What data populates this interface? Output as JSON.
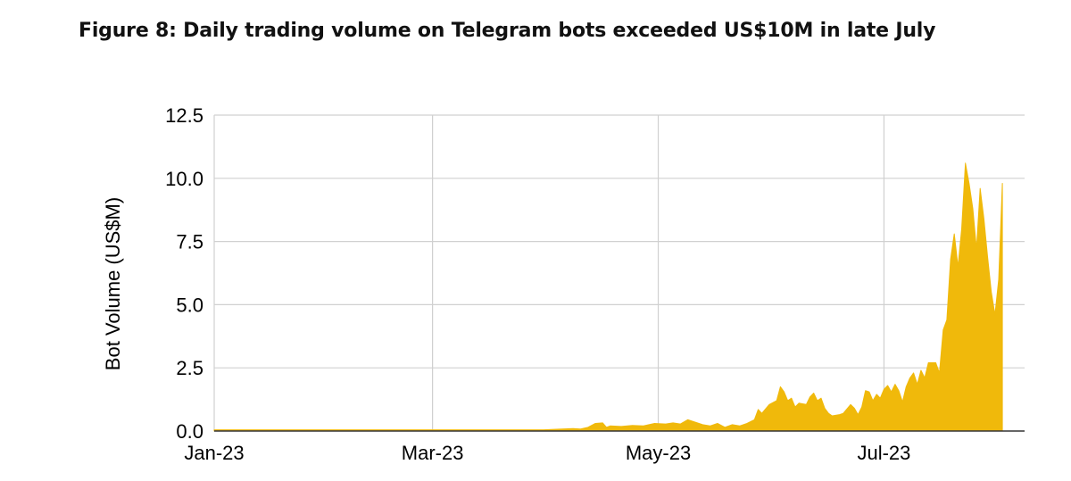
{
  "chart_data": {
    "type": "area",
    "title": "Figure 8: Daily trading volume on Telegram bots exceeded US$10M in late July",
    "xlabel": "",
    "ylabel": "Bot Volume (US$M)",
    "ylim": [
      0,
      12.5
    ],
    "yticks": [
      "0.0",
      "2.5",
      "5.0",
      "7.5",
      "10.0",
      "12.5"
    ],
    "xticks": [
      {
        "label": "Jan-23",
        "date": "2023-01-01"
      },
      {
        "label": "Mar-23",
        "date": "2023-03-01"
      },
      {
        "label": "May-23",
        "date": "2023-05-01"
      },
      {
        "label": "Jul-23",
        "date": "2023-07-01"
      }
    ],
    "x_range": [
      "2023-01-01",
      "2023-08-08"
    ],
    "grid": true,
    "color": "#F0B90B",
    "series": [
      {
        "points": [
          [
            "2023-01-01",
            0.05
          ],
          [
            "2023-03-31",
            0.05
          ],
          [
            "2023-04-05",
            0.08
          ],
          [
            "2023-04-08",
            0.1
          ],
          [
            "2023-04-10",
            0.08
          ],
          [
            "2023-04-12",
            0.15
          ],
          [
            "2023-04-14",
            0.3
          ],
          [
            "2023-04-16",
            0.32
          ],
          [
            "2023-04-17",
            0.15
          ],
          [
            "2023-04-18",
            0.2
          ],
          [
            "2023-04-21",
            0.18
          ],
          [
            "2023-04-24",
            0.22
          ],
          [
            "2023-04-27",
            0.2
          ],
          [
            "2023-04-30",
            0.3
          ],
          [
            "2023-05-03",
            0.28
          ],
          [
            "2023-05-05",
            0.32
          ],
          [
            "2023-05-07",
            0.28
          ],
          [
            "2023-05-09",
            0.45
          ],
          [
            "2023-05-11",
            0.35
          ],
          [
            "2023-05-13",
            0.25
          ],
          [
            "2023-05-15",
            0.2
          ],
          [
            "2023-05-17",
            0.3
          ],
          [
            "2023-05-19",
            0.15
          ],
          [
            "2023-05-21",
            0.25
          ],
          [
            "2023-05-23",
            0.2
          ],
          [
            "2023-05-25",
            0.3
          ],
          [
            "2023-05-27",
            0.45
          ],
          [
            "2023-05-28",
            0.85
          ],
          [
            "2023-05-29",
            0.7
          ],
          [
            "2023-05-31",
            1.05
          ],
          [
            "2023-06-02",
            1.2
          ],
          [
            "2023-06-03",
            1.75
          ],
          [
            "2023-06-04",
            1.55
          ],
          [
            "2023-06-05",
            1.2
          ],
          [
            "2023-06-06",
            1.3
          ],
          [
            "2023-06-07",
            0.95
          ],
          [
            "2023-06-08",
            1.1
          ],
          [
            "2023-06-10",
            1.05
          ],
          [
            "2023-06-11",
            1.35
          ],
          [
            "2023-06-12",
            1.5
          ],
          [
            "2023-06-13",
            1.2
          ],
          [
            "2023-06-14",
            1.3
          ],
          [
            "2023-06-15",
            0.9
          ],
          [
            "2023-06-16",
            0.7
          ],
          [
            "2023-06-17",
            0.6
          ],
          [
            "2023-06-19",
            0.65
          ],
          [
            "2023-06-20",
            0.7
          ],
          [
            "2023-06-22",
            1.05
          ],
          [
            "2023-06-23",
            0.9
          ],
          [
            "2023-06-24",
            0.65
          ],
          [
            "2023-06-25",
            0.95
          ],
          [
            "2023-06-26",
            1.6
          ],
          [
            "2023-06-27",
            1.55
          ],
          [
            "2023-06-28",
            1.2
          ],
          [
            "2023-06-29",
            1.45
          ],
          [
            "2023-06-30",
            1.3
          ],
          [
            "2023-07-01",
            1.65
          ],
          [
            "2023-07-02",
            1.8
          ],
          [
            "2023-07-03",
            1.55
          ],
          [
            "2023-07-04",
            1.85
          ],
          [
            "2023-07-05",
            1.6
          ],
          [
            "2023-07-06",
            1.15
          ],
          [
            "2023-07-07",
            1.75
          ],
          [
            "2023-07-08",
            2.1
          ],
          [
            "2023-07-09",
            2.3
          ],
          [
            "2023-07-10",
            1.85
          ],
          [
            "2023-07-11",
            2.4
          ],
          [
            "2023-07-12",
            2.1
          ],
          [
            "2023-07-13",
            2.7
          ],
          [
            "2023-07-15",
            2.7
          ],
          [
            "2023-07-16",
            2.3
          ],
          [
            "2023-07-17",
            4.0
          ],
          [
            "2023-07-18",
            4.4
          ],
          [
            "2023-07-19",
            6.8
          ],
          [
            "2023-07-20",
            7.8
          ],
          [
            "2023-07-21",
            6.5
          ],
          [
            "2023-07-22",
            8.0
          ],
          [
            "2023-07-23",
            10.6
          ],
          [
            "2023-07-24",
            9.8
          ],
          [
            "2023-07-25",
            8.8
          ],
          [
            "2023-07-26",
            7.2
          ],
          [
            "2023-07-27",
            9.6
          ],
          [
            "2023-07-28",
            8.4
          ],
          [
            "2023-07-29",
            6.9
          ],
          [
            "2023-07-30",
            5.5
          ],
          [
            "2023-07-31",
            4.6
          ],
          [
            "2023-08-01",
            6.0
          ],
          [
            "2023-08-02",
            9.8
          ]
        ]
      }
    ]
  }
}
